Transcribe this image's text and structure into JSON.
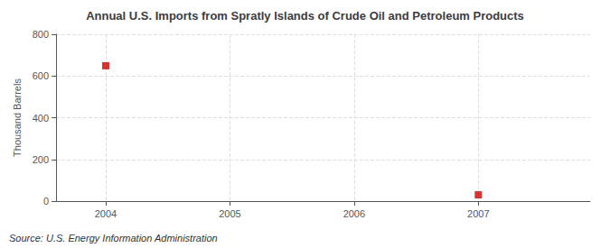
{
  "chart_data": {
    "type": "scatter",
    "title": "Annual U.S. Imports from Spratly Islands of Crude Oil and Petroleum Products",
    "ylabel": "Thousand Barrels",
    "annotation": "Source: U.S. Energy Information Administration",
    "x": [
      2004,
      2007
    ],
    "values": [
      649,
      30
    ],
    "color": "#cc0000",
    "marker": "square",
    "xlim": [
      2003.6,
      2007.9
    ],
    "xticks": [
      2004,
      2005,
      2006,
      2007
    ],
    "ylim": [
      0,
      800
    ],
    "yticks": [
      0,
      200,
      400,
      600,
      800
    ],
    "grid": true
  }
}
